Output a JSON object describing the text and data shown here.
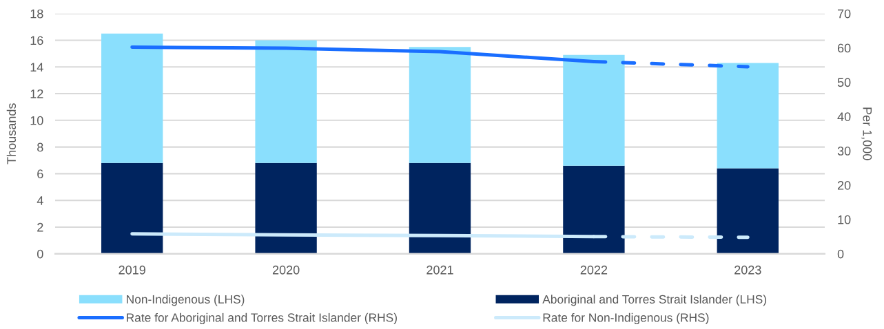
{
  "chart_data": {
    "type": "bar",
    "stacked": true,
    "categories": [
      "2019",
      "2020",
      "2021",
      "2022",
      "2023"
    ],
    "ylabel": "Thousands",
    "y2label": "Per 1,000",
    "ylim": [
      0,
      18
    ],
    "yticks": [
      0,
      2,
      4,
      6,
      8,
      10,
      12,
      14,
      16,
      18
    ],
    "y2lim": [
      0,
      70
    ],
    "y2ticks": [
      0,
      10,
      20,
      30,
      40,
      50,
      60,
      70
    ],
    "grid": "y",
    "legend": "bottom",
    "series": [
      {
        "name": "Aboriginal and Torres Strait Islander (LHS)",
        "color": "#00245f",
        "values": [
          6.8,
          6.8,
          6.8,
          6.6,
          6.4
        ]
      },
      {
        "name": "Non-Indigenous (LHS)",
        "color": "#8adffd",
        "values": [
          9.7,
          9.2,
          8.7,
          8.3,
          7.9
        ]
      },
      {
        "name": "Rate for Aboriginal and Torres Strait Islander (RHS)",
        "type": "line",
        "axis": "y2",
        "color": "#1a6eff",
        "line_style": "solid",
        "values": [
          60.2,
          59.9,
          58.9,
          56.0,
          null
        ]
      },
      {
        "type": "line",
        "axis": "y2",
        "color": "#1a6eff",
        "line_style": "dashed",
        "values": [
          null,
          null,
          null,
          56.0,
          54.5
        ]
      },
      {
        "name": "Rate for Non-Indigenous (RHS)",
        "type": "line",
        "axis": "y2",
        "color": "#cceafb",
        "line_style": "solid",
        "values": [
          5.8,
          5.5,
          5.3,
          5.0,
          null
        ]
      },
      {
        "type": "line",
        "axis": "y2",
        "color": "#cceafb",
        "line_style": "dashed",
        "values": [
          null,
          null,
          null,
          5.0,
          4.8
        ]
      }
    ]
  }
}
